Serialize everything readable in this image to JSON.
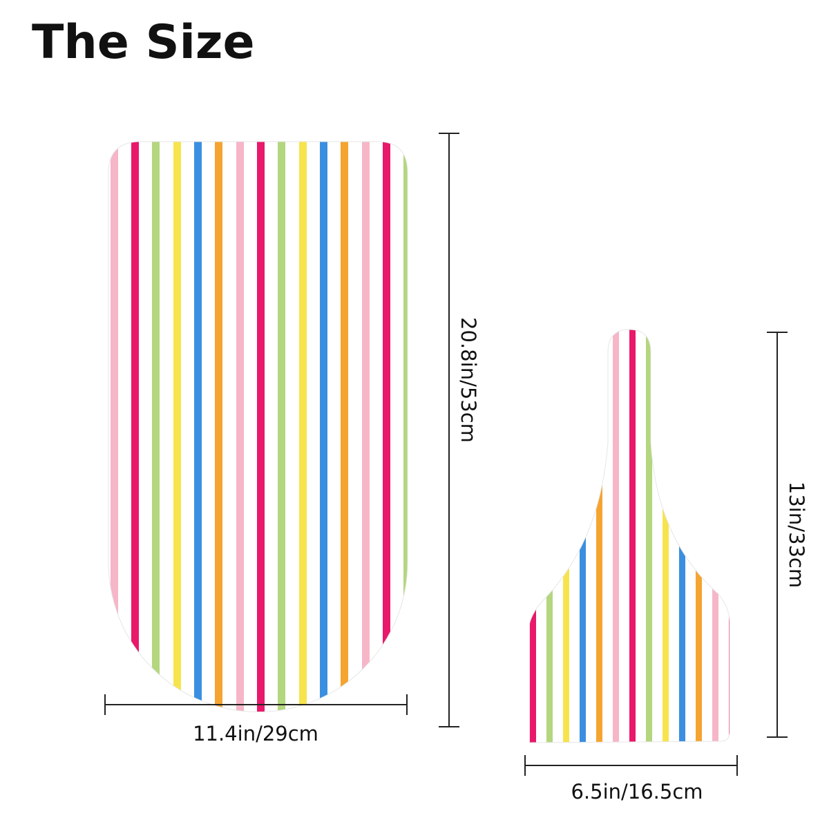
{
  "title": "The Size",
  "lid": {
    "height": "20.8in/53cm",
    "width": "11.4in/29cm"
  },
  "tank": {
    "height": "13in/33cm",
    "width": "6.5in/16.5cm"
  }
}
